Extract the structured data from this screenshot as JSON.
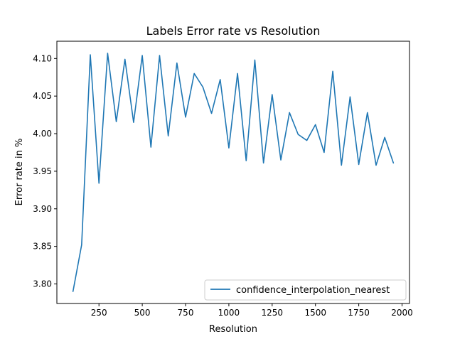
{
  "chart_data": {
    "type": "line",
    "title": "Labels Error rate vs Resolution",
    "xlabel": "Resolution",
    "ylabel": "Error rate in %",
    "xlim": [
      7,
      2043
    ],
    "ylim": [
      3.774,
      4.123
    ],
    "x_ticks": [
      250,
      500,
      750,
      1000,
      1250,
      1500,
      1750,
      2000
    ],
    "x_tick_labels": [
      "250",
      "500",
      "750",
      "1000",
      "1250",
      "1500",
      "1750",
      "2000"
    ],
    "y_ticks": [
      3.8,
      3.85,
      3.9,
      3.95,
      4.0,
      4.05,
      4.1
    ],
    "y_tick_labels": [
      "3.80",
      "3.85",
      "3.90",
      "3.95",
      "4.00",
      "4.05",
      "4.10"
    ],
    "grid": false,
    "legend_position": "lower-right",
    "series": [
      {
        "name": "confidence_interpolation_nearest",
        "color": "#1f77b4",
        "x": [
          100,
          150,
          200,
          250,
          300,
          350,
          400,
          450,
          500,
          550,
          600,
          650,
          700,
          750,
          800,
          850,
          900,
          950,
          1000,
          1050,
          1100,
          1150,
          1200,
          1250,
          1300,
          1350,
          1400,
          1450,
          1500,
          1550,
          1600,
          1650,
          1700,
          1750,
          1800,
          1850,
          1900,
          1950
        ],
        "y": [
          3.79,
          3.852,
          4.105,
          3.934,
          4.107,
          4.016,
          4.099,
          4.015,
          4.104,
          3.982,
          4.104,
          3.997,
          4.094,
          4.022,
          4.08,
          4.062,
          4.027,
          4.072,
          3.981,
          4.08,
          3.964,
          4.098,
          3.961,
          4.052,
          3.965,
          4.028,
          3.999,
          3.991,
          4.012,
          3.975,
          4.083,
          3.958,
          4.049,
          3.959,
          4.028,
          3.958,
          3.995,
          3.961
        ]
      }
    ]
  }
}
